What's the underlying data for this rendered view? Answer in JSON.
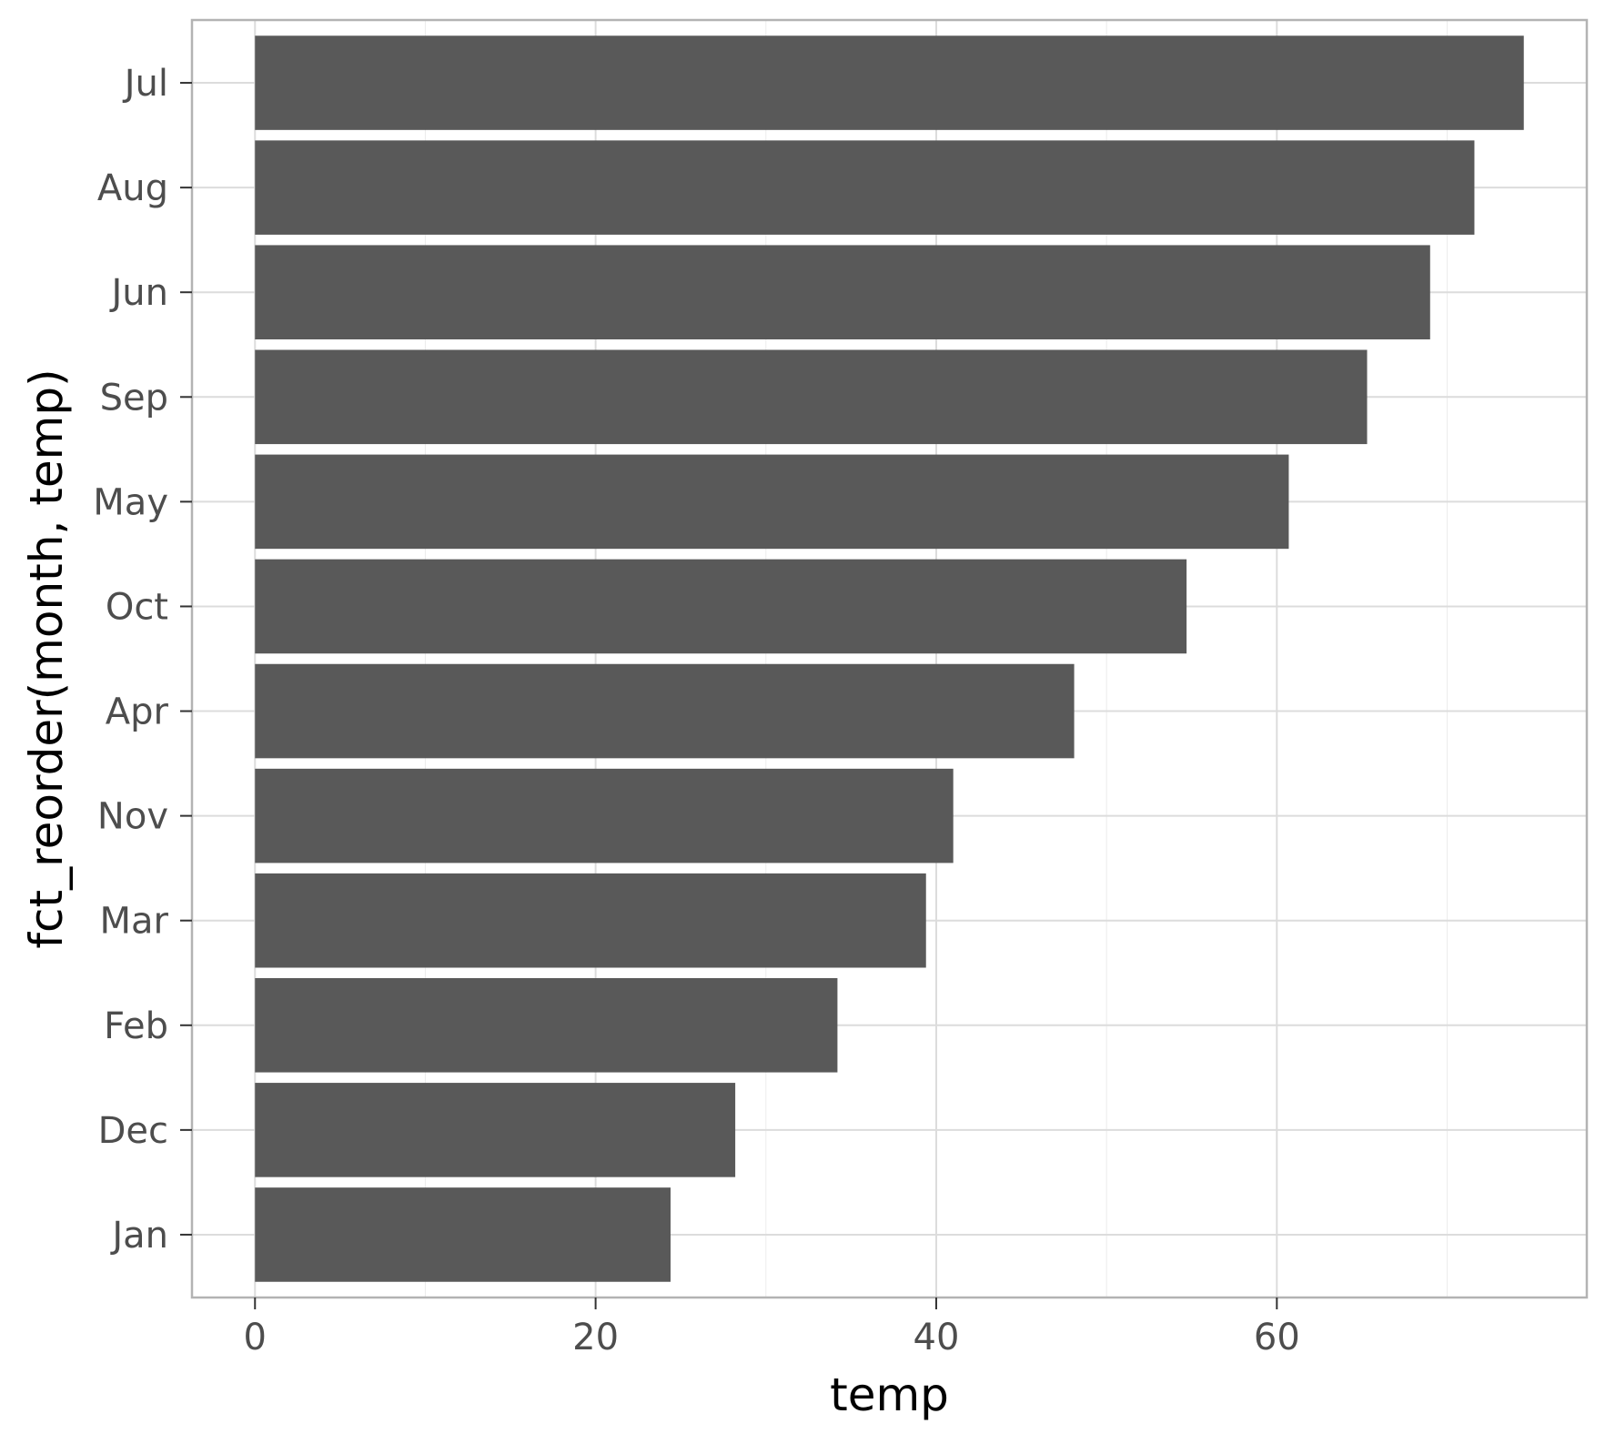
{
  "chart_data": {
    "type": "bar",
    "orientation": "horizontal",
    "categories": [
      "Jan",
      "Dec",
      "Feb",
      "Mar",
      "Nov",
      "Apr",
      "Oct",
      "May",
      "Sep",
      "Jun",
      "Aug",
      "Jul"
    ],
    "values": [
      24.4,
      28.2,
      34.2,
      39.4,
      41.0,
      48.1,
      54.7,
      60.7,
      65.3,
      69.0,
      71.6,
      74.5
    ],
    "xlabel": "temp",
    "ylabel": "fct_reorder(month, temp)",
    "x_ticks": [
      "0",
      "20",
      "40",
      "60"
    ],
    "xlim": [
      -3.7,
      78.2
    ],
    "grid": true,
    "bar_color": "#595959",
    "grid_color": "#dcdcdc",
    "panel_border_color": "#b3b3b3"
  }
}
